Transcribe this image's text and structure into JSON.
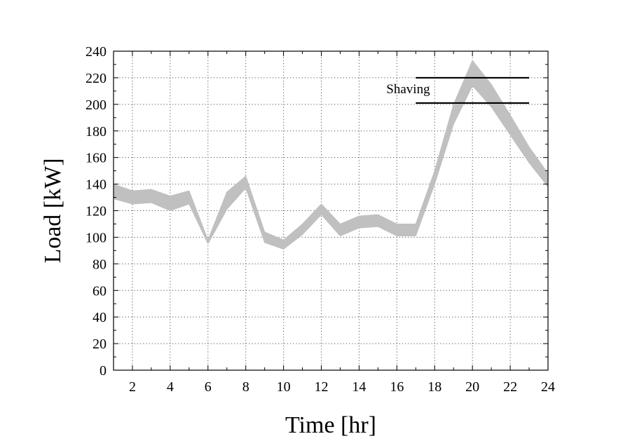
{
  "chart_data": {
    "type": "area",
    "title": "",
    "xlabel": "Time [hr]",
    "ylabel": "Load [kW]",
    "xlim": [
      1,
      24
    ],
    "ylim": [
      0,
      240
    ],
    "x_ticks": [
      2,
      4,
      6,
      8,
      10,
      12,
      14,
      16,
      18,
      20,
      22,
      24
    ],
    "y_ticks": [
      0,
      20,
      40,
      60,
      80,
      100,
      120,
      140,
      160,
      180,
      200,
      220,
      240
    ],
    "grid": true,
    "band_color": "#c0c0c0",
    "x": [
      1,
      2,
      3,
      4,
      5,
      6,
      7,
      8,
      9,
      10,
      11,
      12,
      13,
      14,
      15,
      16,
      17,
      18,
      19,
      20,
      21,
      22,
      23,
      24
    ],
    "upper": [
      140,
      135,
      136,
      131,
      135,
      98,
      134,
      146,
      104,
      98,
      110,
      125,
      110,
      116,
      117,
      110,
      110,
      150,
      200,
      233,
      215,
      192,
      168,
      148
    ],
    "lower": [
      129,
      125,
      126,
      120,
      125,
      95,
      121,
      137,
      96,
      91,
      102,
      117,
      101,
      107,
      108,
      101,
      101,
      140,
      185,
      214,
      198,
      177,
      156,
      138
    ],
    "annotations": [
      {
        "text": "Shaving",
        "lines_y": [
          220,
          201
        ],
        "x_range": [
          17,
          23
        ]
      }
    ]
  }
}
